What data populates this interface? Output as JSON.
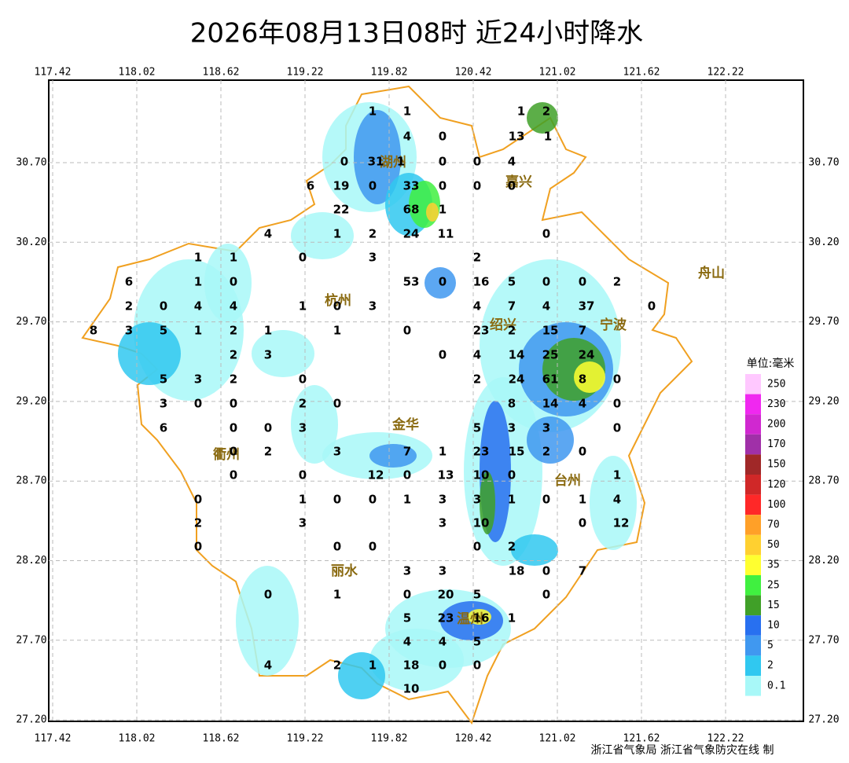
{
  "header": {
    "title": "2026年08月13日08时  近24小时降水"
  },
  "axes": {
    "xticks": [
      117.42,
      118.02,
      118.62,
      119.22,
      119.82,
      120.42,
      121.02,
      121.62,
      122.22
    ],
    "yticks": [
      {
        "value": 30.7,
        "label": "30.70"
      },
      {
        "value": 30.2,
        "label": "30.20"
      },
      {
        "value": 29.7,
        "label": "29.70"
      },
      {
        "value": 29.2,
        "label": "29.20"
      },
      {
        "value": 28.7,
        "label": "28.70"
      },
      {
        "value": 28.2,
        "label": "28.20"
      },
      {
        "value": 27.7,
        "label": "27.70"
      },
      {
        "value": 27.2,
        "label": "27.20"
      }
    ]
  },
  "cities": [
    "湖州",
    "嘉兴",
    "杭州",
    "绍兴",
    "宁波",
    "舟山",
    "衢州",
    "金华",
    "台州",
    "丽水",
    "温州"
  ],
  "stations": [
    1,
    1,
    1,
    2,
    4,
    0,
    13,
    1,
    0,
    31,
    1,
    0,
    0,
    4,
    6,
    19,
    0,
    33,
    0,
    0,
    0,
    22,
    68,
    1,
    4,
    1,
    2,
    24,
    11,
    0,
    1,
    1,
    0,
    3,
    2,
    6,
    1,
    0,
    53,
    0,
    16,
    5,
    0,
    0,
    2,
    2,
    0,
    4,
    4,
    1,
    0,
    3,
    4,
    7,
    4,
    37,
    0,
    8,
    3,
    5,
    1,
    2,
    1,
    1,
    0,
    23,
    2,
    15,
    7,
    2,
    3,
    0,
    4,
    14,
    25,
    24,
    5,
    3,
    2,
    0,
    2,
    24,
    61,
    8,
    0,
    3,
    0,
    0,
    2,
    0,
    8,
    14,
    4,
    0,
    6,
    0,
    0,
    3,
    5,
    3,
    3,
    0,
    0,
    2,
    3,
    7,
    1,
    23,
    15,
    2,
    0,
    0,
    0,
    12,
    0,
    13,
    10,
    0,
    1,
    0,
    1,
    0,
    0,
    1,
    3,
    3,
    1,
    0,
    1,
    4,
    2,
    3,
    3,
    10,
    0,
    12,
    0,
    0,
    0,
    0,
    2,
    3,
    3,
    18,
    0,
    7,
    0,
    1,
    0,
    20,
    5,
    0,
    5,
    23,
    16,
    1,
    4,
    4,
    5,
    4,
    2,
    1,
    18,
    0,
    0,
    10
  ],
  "legend": {
    "title": "单位:毫米",
    "levels": [
      250,
      230,
      200,
      170,
      150,
      120,
      100,
      70,
      50,
      35,
      25,
      15,
      10,
      5,
      2,
      0.1
    ],
    "colors": [
      "#ffc8ff",
      "#f028f0",
      "#d028d0",
      "#a030a8",
      "#a02828",
      "#d02828",
      "#ff2828",
      "#ffa028",
      "#ffd030",
      "#ffff30",
      "#40f040",
      "#40a028",
      "#2870f0",
      "#4098f0",
      "#30c8f0",
      "#a8f8f8"
    ]
  },
  "footer": "浙江省气象局 浙江省气象防灾在线 制"
}
